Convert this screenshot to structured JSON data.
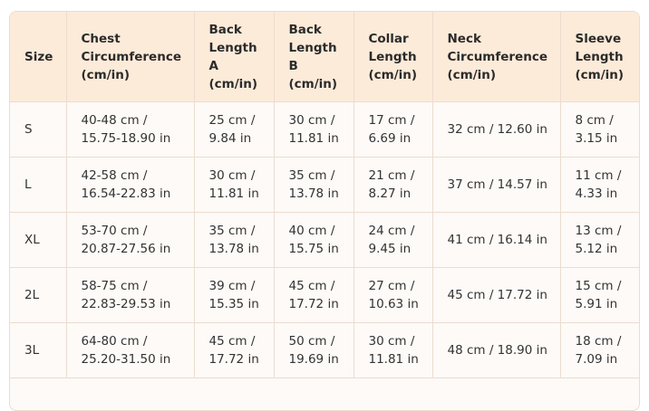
{
  "table": {
    "header": [
      "Size",
      "Chest Circumference (cm/in)",
      "Back Length A (cm/in)",
      "Back Length B (cm/in)",
      "Collar Length (cm/in)",
      "Neck Circumference (cm/in)",
      "Sleeve Length (cm/in)"
    ],
    "rows": [
      [
        "S",
        "40-48 cm / 15.75-18.90 in",
        "25 cm / 9.84 in",
        "30 cm / 11.81 in",
        "17 cm / 6.69 in",
        "32 cm / 12.60 in",
        "8 cm / 3.15 in"
      ],
      [
        "L",
        "42-58 cm / 16.54-22.83 in",
        "30 cm / 11.81 in",
        "35 cm / 13.78 in",
        "21 cm / 8.27 in",
        "37 cm / 14.57 in",
        "11 cm / 4.33 in"
      ],
      [
        "XL",
        "53-70 cm / 20.87-27.56 in",
        "35 cm / 13.78 in",
        "40 cm / 15.75 in",
        "24 cm / 9.45 in",
        "41 cm / 16.14 in",
        "13 cm / 5.12 in"
      ],
      [
        "2L",
        "58-75 cm / 22.83-29.53 in",
        "39 cm / 15.35 in",
        "45 cm / 17.72 in",
        "27 cm / 10.63 in",
        "45 cm / 17.72 in",
        "15 cm / 5.91 in"
      ],
      [
        "3L",
        "64-80 cm / 25.20-31.50 in",
        "45 cm / 17.72 in",
        "50 cm / 19.69 in",
        "30 cm / 11.81 in",
        "48 cm / 18.90 in",
        "18 cm / 7.09 in"
      ]
    ]
  }
}
